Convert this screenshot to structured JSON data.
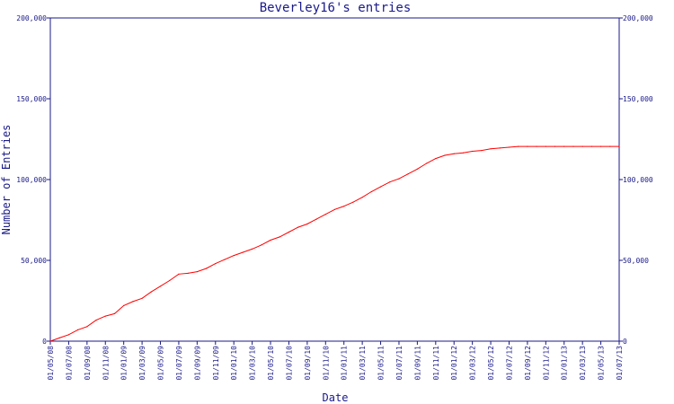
{
  "chart_data": {
    "type": "line",
    "title": "Beverley16's entries",
    "xlabel": "Date",
    "ylabel": "Number of Entries",
    "ylim": [
      0,
      200000
    ],
    "yticks": [
      0,
      50000,
      100000,
      150000,
      200000
    ],
    "ytick_labels": [
      "0",
      "50,000",
      "100,000",
      "150,000",
      "200,000"
    ],
    "xlim": [
      "2008-05-01",
      "2013-07-01"
    ],
    "xtick_labels": [
      "01/05/08",
      "01/07/08",
      "01/09/08",
      "01/11/08",
      "01/01/09",
      "01/03/09",
      "01/05/09",
      "01/07/09",
      "01/09/09",
      "01/11/09",
      "01/01/10",
      "01/03/10",
      "01/05/10",
      "01/07/10",
      "01/09/10",
      "01/11/10",
      "01/01/11",
      "01/03/11",
      "01/05/11",
      "01/07/11",
      "01/09/11",
      "01/11/11",
      "01/01/12",
      "01/03/12",
      "01/05/12",
      "01/07/12",
      "01/09/12",
      "01/11/12",
      "01/01/13",
      "01/03/13",
      "01/05/13",
      "01/07/13"
    ],
    "grid": false,
    "line_color": "#ff0000",
    "axis_color": "#1a1a8a",
    "series": [
      {
        "x": [
          "2008-05-01",
          "2008-06-01",
          "2008-07-01",
          "2008-08-01",
          "2008-09-01",
          "2008-10-01",
          "2008-11-01",
          "2008-12-01",
          "2009-01-01",
          "2009-02-01",
          "2009-03-01",
          "2009-04-01",
          "2009-05-01",
          "2009-06-01",
          "2009-07-01",
          "2009-08-01",
          "2009-09-01",
          "2009-10-01",
          "2009-11-01",
          "2009-12-01",
          "2010-01-01",
          "2010-02-01",
          "2010-03-01",
          "2010-04-01",
          "2010-05-01",
          "2010-06-01",
          "2010-07-01",
          "2010-08-01",
          "2010-09-01",
          "2010-10-01",
          "2010-11-01",
          "2010-12-01",
          "2011-01-01",
          "2011-02-01",
          "2011-03-01",
          "2011-04-01",
          "2011-05-01",
          "2011-06-01",
          "2011-07-01",
          "2011-08-01",
          "2011-09-01",
          "2011-10-01",
          "2011-11-01",
          "2011-12-01",
          "2012-01-01",
          "2012-02-01",
          "2012-03-01",
          "2012-04-01",
          "2012-05-01",
          "2012-06-01",
          "2012-07-01",
          "2012-08-01",
          "2012-09-01",
          "2012-10-01",
          "2012-11-01",
          "2012-12-01",
          "2013-01-01",
          "2013-02-01",
          "2013-03-01",
          "2013-04-01",
          "2013-05-01",
          "2013-06-01",
          "2013-07-01"
        ],
        "values": [
          0,
          2000,
          4000,
          7000,
          9000,
          13000,
          15500,
          17000,
          22000,
          24500,
          26500,
          30500,
          34000,
          37500,
          41500,
          42000,
          43000,
          45000,
          48000,
          50500,
          53000,
          55000,
          57000,
          59500,
          62500,
          64500,
          67500,
          70500,
          72500,
          75500,
          78500,
          81500,
          83500,
          86000,
          89000,
          92500,
          95500,
          98500,
          100500,
          103500,
          106500,
          110000,
          113000,
          115000,
          116000,
          116500,
          117500,
          118000,
          119000,
          119500,
          120000,
          120500,
          120500,
          120500,
          120500,
          120500,
          120500,
          120500,
          120500,
          120500,
          120500,
          120500,
          120500
        ]
      }
    ]
  }
}
